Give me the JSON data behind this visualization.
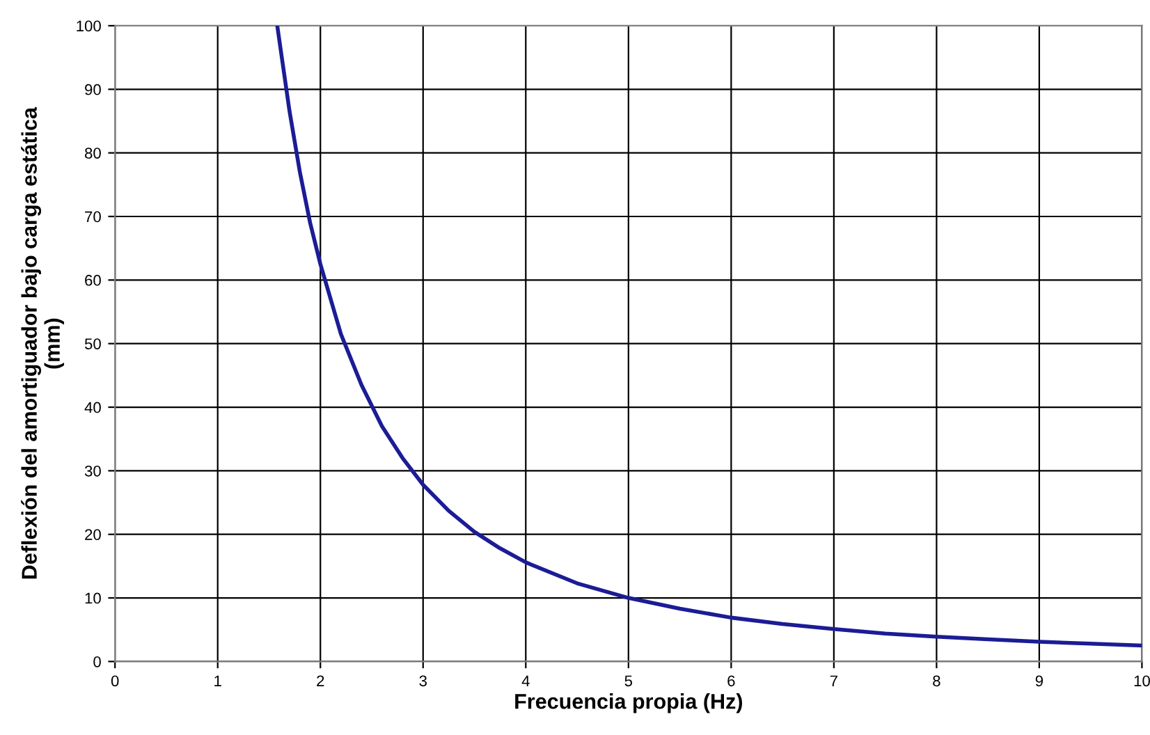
{
  "chart_data": {
    "type": "line",
    "xlabel": "Frecuencia propia (Hz)",
    "ylabel": "Deflexión del amortiguador bajo carga estática\n(mm)",
    "series": [
      {
        "color": "#1c1c96",
        "x": [
          1.58,
          1.7,
          1.8,
          1.9,
          2,
          2.2,
          2.4,
          2.6,
          2.8,
          3,
          3.25,
          3.5,
          3.75,
          4,
          4.5,
          5,
          5.5,
          6,
          6.5,
          7,
          7.5,
          8,
          8.5,
          9,
          9.5,
          10
        ],
        "values": [
          100,
          86.5,
          77,
          69,
          62.5,
          51.5,
          43.5,
          37,
          32,
          27.8,
          23.7,
          20.4,
          17.8,
          15.6,
          12.3,
          10,
          8.3,
          6.9,
          5.9,
          5.1,
          4.4,
          3.9,
          3.5,
          3.1,
          2.8,
          2.5
        ]
      }
    ],
    "xlim": [
      0,
      10
    ],
    "xticks": [
      0,
      1,
      2,
      3,
      4,
      5,
      6,
      7,
      8,
      9,
      10
    ],
    "ylim": [
      0,
      100
    ],
    "yticks": [
      0,
      10,
      20,
      30,
      40,
      50,
      60,
      70,
      80,
      90,
      100
    ],
    "grid": true,
    "marker": "none",
    "line_style": "solid",
    "legend": false
  }
}
